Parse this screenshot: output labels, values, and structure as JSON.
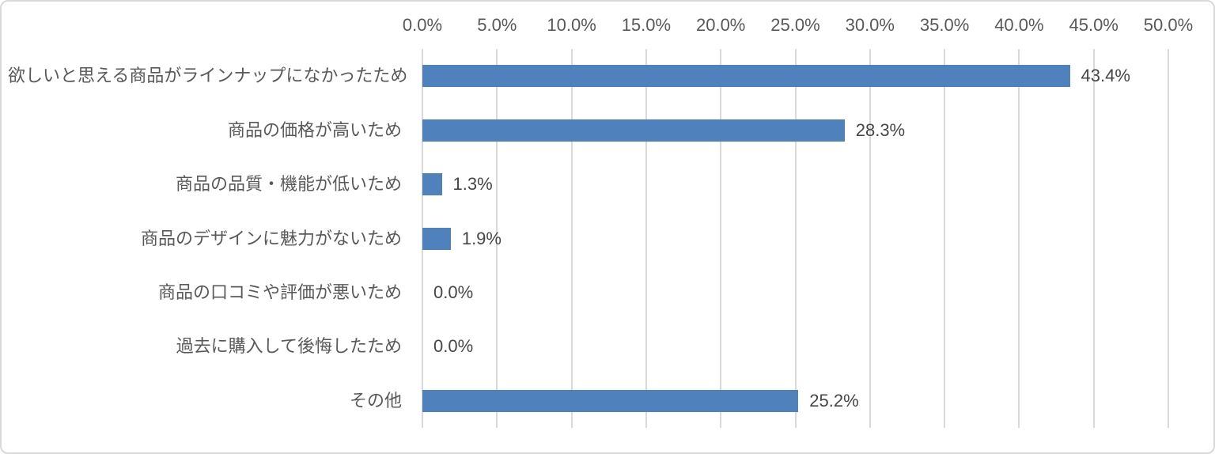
{
  "chart_data": {
    "type": "bar",
    "orientation": "horizontal",
    "title": "",
    "xlabel": "",
    "ylabel": "",
    "xlim": [
      0,
      50
    ],
    "grid": true,
    "axis_position": "top",
    "categories": [
      "欲しいと思える商品がラインナップになかったため",
      "商品の価格が高いため",
      "商品の品質・機能が低いため",
      "商品のデザインに魅力がないため",
      "商品の口コミや評価が悪いため",
      "過去に購入して後悔したため",
      "その他"
    ],
    "values": [
      43.4,
      28.3,
      1.3,
      1.9,
      0.0,
      0.0,
      25.2
    ],
    "value_labels": [
      "43.4%",
      "28.3%",
      "1.3%",
      "1.9%",
      "0.0%",
      "0.0%",
      "25.2%"
    ],
    "x_tick_values": [
      0,
      5,
      10,
      15,
      20,
      25,
      30,
      35,
      40,
      45,
      50
    ],
    "x_tick_labels": [
      "0.0%",
      "5.0%",
      "10.0%",
      "15.0%",
      "20.0%",
      "25.0%",
      "30.0%",
      "35.0%",
      "40.0%",
      "45.0%",
      "50.0%"
    ],
    "legend": null,
    "colors": {
      "bar": "#4F81BD",
      "gridline": "#D9D9D9",
      "tick_text": "#595959",
      "category_text": "#595959",
      "value_text": "#464646",
      "border": "#D9D9D9",
      "background": "#FFFFFF"
    }
  }
}
